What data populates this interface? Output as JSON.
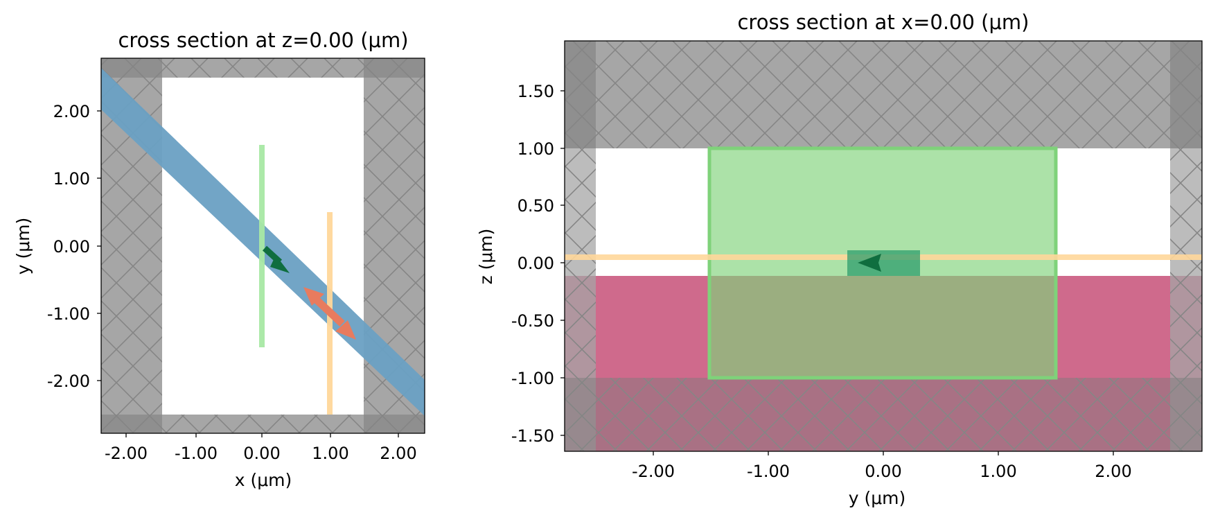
{
  "colors": {
    "pml_gray": "#a6a6a6",
    "pml_hatch": "#8a8a8a",
    "waveguide_blue": "#6aa0c3",
    "source_green": "#a8e8a4",
    "monitor_orange": "#ffd79a",
    "substrate_pink": "#cf6a8c",
    "overlap_olive": "#8c8c6a",
    "arrow_green": "#0f6e3f",
    "arrow_orange": "#e87b5e"
  },
  "left_panel": {
    "title": "cross section at z=0.00 (μm)",
    "xlabel": "x (μm)",
    "ylabel": "y (μm)",
    "xticks": [
      "-2.00",
      "-1.00",
      "0.00",
      "1.00",
      "2.00"
    ],
    "yticks": [
      "2.00",
      "1.00",
      "0.00",
      "-1.00",
      "-2.00"
    ]
  },
  "right_panel": {
    "title": "cross section at x=0.00 (μm)",
    "xlabel": "y (μm)",
    "ylabel": "z (μm)",
    "xticks": [
      "-2.00",
      "-1.00",
      "0.00",
      "1.00",
      "2.00"
    ],
    "yticks": [
      "1.50",
      "1.00",
      "0.50",
      "0.00",
      "-0.50",
      "-1.00",
      "-1.50"
    ]
  }
}
